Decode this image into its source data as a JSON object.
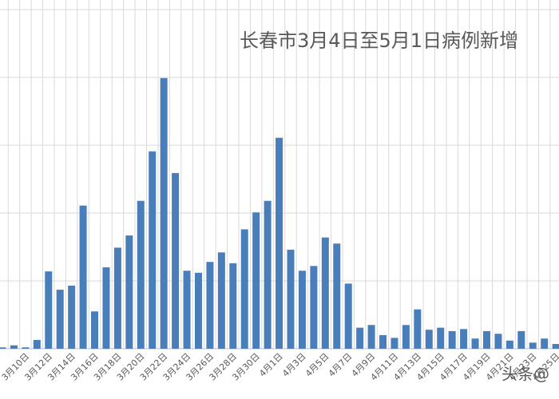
{
  "chart_data": {
    "type": "bar",
    "title": "长春市3月4日至5月1日病例新增",
    "watermark": "头条@",
    "categories": [
      null,
      null,
      "3月10日",
      null,
      "3月12日",
      null,
      "3月14日",
      null,
      "3月16日",
      null,
      "3月18日",
      null,
      "3月20日",
      null,
      "3月22日",
      null,
      "3月24日",
      null,
      "3月26日",
      null,
      "3月28日",
      null,
      "3月30日",
      null,
      "4月1日",
      null,
      "4月3日",
      null,
      "4月5日",
      null,
      "4月7日",
      null,
      "4月9日",
      null,
      "4月11日",
      null,
      "4月13日",
      null,
      "4月15日",
      null,
      "4月17日",
      null,
      "4月19日",
      null,
      "4月21日",
      null,
      "4月23日",
      null,
      "4月25日"
    ],
    "values": [
      0.02,
      0.05,
      0.02,
      0.13,
      1.14,
      0.87,
      0.93,
      2.11,
      0.55,
      1.2,
      1.49,
      1.67,
      2.18,
      2.91,
      3.99,
      2.59,
      1.15,
      1.12,
      1.28,
      1.42,
      1.26,
      1.76,
      2.01,
      2.18,
      3.11,
      1.46,
      1.15,
      1.22,
      1.64,
      1.55,
      0.96,
      0.31,
      0.35,
      0.2,
      0.16,
      0.35,
      0.58,
      0.28,
      0.31,
      0.26,
      0.29,
      0.15,
      0.26,
      0.22,
      0.12,
      0.26,
      0.09,
      0.15,
      0.07
    ],
    "color": "#4a7ebb",
    "ylim": [
      0,
      5
    ],
    "yticks": [
      0,
      1,
      2,
      3,
      4,
      5
    ],
    "grid": true
  }
}
